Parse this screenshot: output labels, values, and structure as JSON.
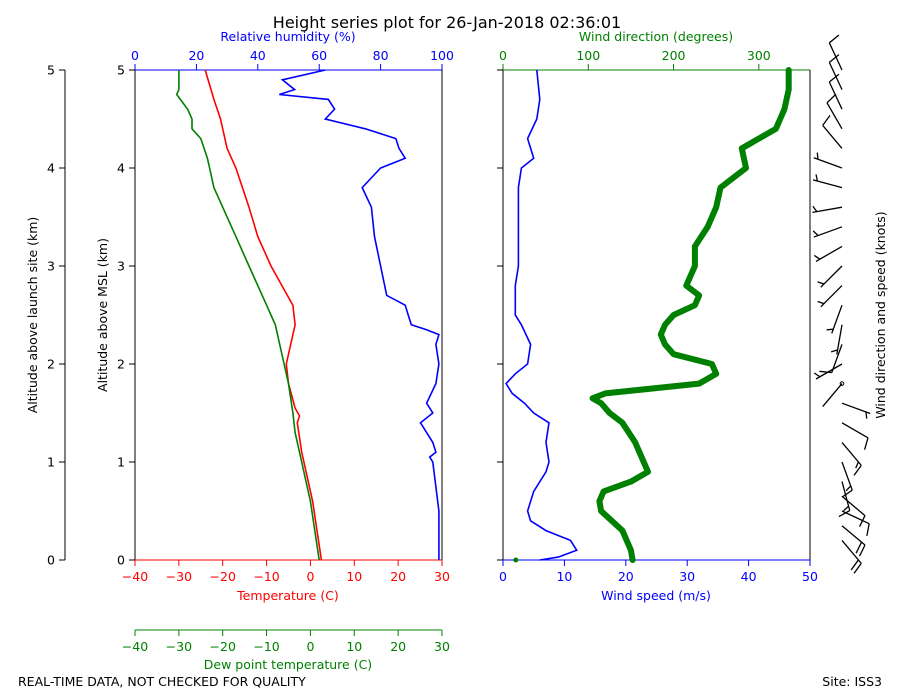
{
  "title": "Height series plot for 26-Jan-2018 02:36:01",
  "footer": {
    "left": "REAL-TIME DATA, NOT CHECKED FOR QUALITY",
    "right": "Site: ISS3"
  },
  "colors": {
    "temperature": "#ff0000",
    "dewpoint": "#008000",
    "rh": "#0000ff",
    "windspeed": "#0000ff",
    "winddir": "#008000",
    "barbs": "#000000"
  },
  "chart_data": [
    {
      "type": "line",
      "name": "thermo-panel",
      "ylabels": {
        "launch": "Altitude above launch site (km)",
        "msl": "Altitude above MSL (km)"
      },
      "ylim": [
        0,
        5
      ],
      "yticks": [
        0,
        1,
        2,
        3,
        4,
        5
      ],
      "ytick_labels": [
        "0",
        "1",
        "2",
        "3",
        "4",
        "5"
      ],
      "axes": {
        "temperature": {
          "label": "Temperature (C)",
          "lim": [
            -40,
            30
          ],
          "ticks": [
            -40,
            -30,
            -20,
            -10,
            0,
            10,
            20,
            30
          ],
          "tick_labels": [
            "−40",
            "−30",
            "−20",
            "−10",
            "0",
            "10",
            "20",
            "30"
          ]
        },
        "dewpoint": {
          "label": "Dew point temperature (C)",
          "lim": [
            -40,
            30
          ],
          "ticks": [
            -40,
            -30,
            -20,
            -10,
            0,
            10,
            20,
            30
          ],
          "tick_labels": [
            "−40",
            "−30",
            "−20",
            "−10",
            "0",
            "10",
            "20",
            "30"
          ]
        },
        "rh": {
          "label": "Relative humidity (%)",
          "lim": [
            0,
            100
          ],
          "ticks": [
            0,
            20,
            40,
            60,
            80,
            100
          ],
          "tick_labels": [
            "0",
            "20",
            "40",
            "60",
            "80",
            "100"
          ]
        }
      },
      "series": [
        {
          "name": "Temperature",
          "axis": "temperature",
          "alt_km": [
            0,
            0.3,
            0.6,
            1.0,
            1.1,
            1.4,
            1.47,
            1.55,
            1.8,
            2.0,
            2.3,
            2.4,
            2.6,
            2.8,
            3.0,
            3.3,
            3.6,
            4.0,
            4.2,
            4.5,
            4.7,
            5.0
          ],
          "values": [
            2.5,
            1.5,
            0.5,
            -1.5,
            -2,
            -3,
            -2.5,
            -3.5,
            -5,
            -5.5,
            -4,
            -3.5,
            -4,
            -6.5,
            -9,
            -12,
            -14,
            -17,
            -19,
            -20.5,
            -22,
            -24
          ]
        },
        {
          "name": "Dew point",
          "axis": "dewpoint",
          "alt_km": [
            0,
            0.3,
            0.6,
            1.0,
            1.3,
            1.5,
            1.8,
            2.0,
            2.3,
            2.4,
            2.6,
            2.8,
            3.0,
            3.3,
            3.6,
            3.8,
            4.0,
            4.1,
            4.3,
            4.4,
            4.5,
            4.6,
            4.75,
            4.8,
            5.0
          ],
          "values": [
            2,
            1,
            0,
            -2,
            -3.5,
            -4,
            -5,
            -6,
            -7.5,
            -8,
            -10,
            -12,
            -14,
            -17,
            -20,
            -22,
            -23,
            -23.5,
            -25,
            -27,
            -27,
            -28,
            -30.5,
            -30,
            -30
          ]
        },
        {
          "name": "Relative humidity",
          "axis": "rh",
          "alt_km": [
            0,
            0.5,
            1.0,
            1.05,
            1.1,
            1.2,
            1.3,
            1.4,
            1.5,
            1.6,
            1.8,
            2.0,
            2.2,
            2.3,
            2.35,
            2.4,
            2.5,
            2.6,
            2.7,
            3.0,
            3.3,
            3.6,
            3.8,
            4.0,
            4.1,
            4.2,
            4.3,
            4.4,
            4.5,
            4.6,
            4.7,
            4.75,
            4.8,
            4.9,
            5.0
          ],
          "values": [
            99,
            99,
            97,
            96,
            98,
            97,
            95,
            93,
            97,
            95,
            98,
            99,
            98,
            99,
            95,
            90,
            89,
            88,
            82,
            80,
            78,
            77,
            74,
            80,
            88,
            86,
            85,
            75,
            62,
            65,
            63,
            47,
            52,
            48,
            62
          ]
        }
      ]
    },
    {
      "type": "line",
      "name": "wind-panel",
      "ylim": [
        0,
        5
      ],
      "axes": {
        "windspeed": {
          "label": "Wind speed (m/s)",
          "lim": [
            0,
            50
          ],
          "ticks": [
            0,
            10,
            20,
            30,
            40,
            50
          ],
          "tick_labels": [
            "0",
            "10",
            "20",
            "30",
            "40",
            "50"
          ]
        },
        "winddir": {
          "label": "Wind direction (degrees)",
          "lim": [
            0,
            360
          ],
          "ticks": [
            0,
            100,
            200,
            300
          ],
          "tick_labels": [
            "0",
            "100",
            "200",
            "300"
          ]
        }
      },
      "series": [
        {
          "name": "Wind speed",
          "axis": "windspeed",
          "alt_km": [
            0.0,
            0.03,
            0.1,
            0.2,
            0.3,
            0.4,
            0.5,
            0.7,
            0.9,
            1.0,
            1.2,
            1.4,
            1.5,
            1.6,
            1.7,
            1.8,
            1.9,
            2.0,
            2.2,
            2.4,
            2.5,
            2.6,
            2.8,
            3.0,
            3.2,
            3.5,
            3.8,
            4.0,
            4.1,
            4.3,
            4.5,
            4.7,
            5.0
          ],
          "values": [
            6,
            9,
            12,
            11,
            7,
            4.5,
            4,
            5,
            7,
            7.5,
            7,
            7.5,
            5,
            3.5,
            1.5,
            0.5,
            2,
            4,
            4.5,
            3,
            2,
            2,
            2,
            2.5,
            2.5,
            2.5,
            2.5,
            3,
            5,
            4,
            5.5,
            6,
            5.5
          ]
        },
        {
          "name": "Wind direction",
          "axis": "winddir",
          "alt_km": [
            0.0,
            0.1,
            0.3,
            0.5,
            0.6,
            0.7,
            0.8,
            0.9,
            1.0,
            1.2,
            1.4,
            1.5,
            1.6,
            1.65,
            1.7,
            1.8,
            1.9,
            2.0,
            2.1,
            2.2,
            2.3,
            2.4,
            2.5,
            2.6,
            2.7,
            2.8,
            3.0,
            3.2,
            3.4,
            3.6,
            3.8,
            4.0,
            4.2,
            4.4,
            4.6,
            4.8,
            5.0
          ],
          "values": [
            152,
            150,
            140,
            115,
            113,
            118,
            150,
            170,
            165,
            155,
            140,
            125,
            115,
            105,
            120,
            230,
            250,
            245,
            200,
            190,
            185,
            190,
            200,
            225,
            230,
            215,
            225,
            225,
            240,
            250,
            255,
            285,
            280,
            320,
            330,
            335,
            335
          ]
        },
        {
          "name": "Wind direction (surface)",
          "axis": "winddir",
          "alt_km": [
            0.0
          ],
          "values": [
            15
          ]
        }
      ]
    },
    {
      "type": "barbs",
      "name": "barb-panel",
      "ylabel": "Wind direction and speed (knots)",
      "alt_km": [
        0.2,
        0.35,
        0.5,
        0.65,
        0.8,
        1.0,
        1.2,
        1.4,
        1.6,
        1.8,
        2.0,
        2.2,
        2.4,
        2.6,
        2.8,
        3.0,
        3.2,
        3.4,
        3.6,
        3.8,
        4.0,
        4.2,
        4.4,
        4.6,
        4.8,
        5.0
      ],
      "direction_deg": [
        140,
        130,
        115,
        130,
        165,
        160,
        140,
        120,
        110,
        220,
        240,
        200,
        190,
        200,
        225,
        225,
        240,
        250,
        260,
        285,
        290,
        320,
        330,
        335,
        335,
        335
      ],
      "speed_kt": [
        22,
        18,
        10,
        9,
        13,
        15,
        14,
        12,
        6,
        2,
        7,
        9,
        6,
        4,
        4,
        5,
        5,
        5,
        5,
        5,
        6,
        9,
        9,
        11,
        11,
        11
      ]
    }
  ]
}
